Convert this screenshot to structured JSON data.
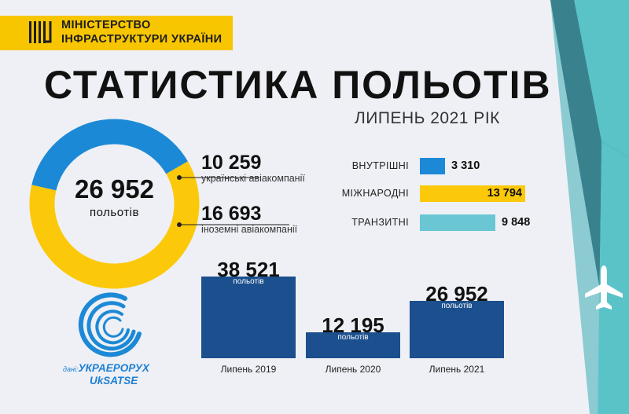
{
  "header": {
    "ministry_line1": "МІНІСТЕРСТВО",
    "ministry_line2": "ІНФРАСТРУКТУРИ УКРАЇНИ",
    "title": "СТАТИСТИКА ПОЛЬОТІВ",
    "subtitle": "ЛИПЕНЬ 2021 РІК"
  },
  "colors": {
    "blue": "#1c89d6",
    "yellow": "#fcc90a",
    "teal": "#6ac6d3",
    "navy": "#1b4f8d",
    "deco_teal": "#5ac3c8",
    "deco_dark": "#223a4d"
  },
  "icons": {
    "logo": "ministry-bars-icon",
    "plane": "airplane-icon",
    "source_logo": "ukraerorukh-swirl-logo"
  },
  "chart_data": [
    {
      "type": "pie",
      "total_label": "26 952",
      "unit_label": "польотів",
      "segments": [
        {
          "value": 10259,
          "value_label": "10 259",
          "label": "українські авіакомпанії",
          "color": "#1c89d6"
        },
        {
          "value": 16693,
          "value_label": "16 693",
          "label": "іноземні авіакомпанії",
          "color": "#fcc90a"
        }
      ]
    },
    {
      "type": "bar",
      "orientation": "horizontal",
      "categories": [
        "ВНУТРІШНІ",
        "МІЖНАРОДНІ",
        "ТРАНЗИТНІ"
      ],
      "values": [
        3310,
        13794,
        9848
      ],
      "value_labels": [
        "3 310",
        "13 794",
        "9 848"
      ],
      "colors": [
        "#1c89d6",
        "#fcc90a",
        "#6ac6d3"
      ]
    },
    {
      "type": "bar",
      "categories": [
        "Липень 2019",
        "Липень 2020",
        "Липень 2021"
      ],
      "values": [
        38521,
        12195,
        26952
      ],
      "value_labels": [
        "38 521",
        "12 195",
        "26 952"
      ],
      "unit_label": "польотів",
      "color": "#1b4f8d"
    }
  ],
  "source": {
    "prefix": "дані:",
    "name": "УКРАЕРОРУХ",
    "code": "UkSATSE"
  }
}
